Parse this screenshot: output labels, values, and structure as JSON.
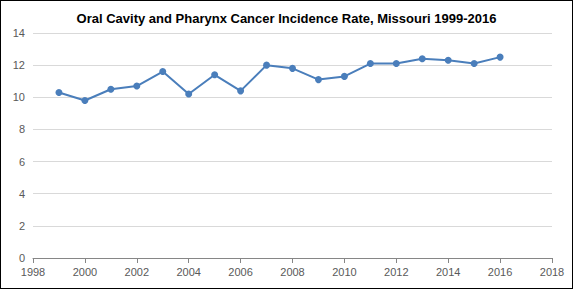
{
  "chart_data": {
    "type": "line",
    "title": "Oral Cavity and Pharynx Cancer Incidence Rate, Missouri 1999-2016",
    "x": [
      1999,
      2000,
      2001,
      2002,
      2003,
      2004,
      2005,
      2006,
      2007,
      2008,
      2009,
      2010,
      2011,
      2012,
      2013,
      2014,
      2015,
      2016
    ],
    "values": [
      10.3,
      9.8,
      10.5,
      10.7,
      11.6,
      10.2,
      11.4,
      10.4,
      12.0,
      11.8,
      11.1,
      11.3,
      12.1,
      12.1,
      12.4,
      12.3,
      12.1,
      12.5
    ],
    "color": "#4a7ebb",
    "marker": "circle",
    "line_style": "solid",
    "xlim": [
      1998,
      2018
    ],
    "xticks": [
      1998,
      2000,
      2002,
      2004,
      2006,
      2008,
      2010,
      2012,
      2014,
      2016,
      2018
    ],
    "ylim": [
      0,
      14
    ],
    "yticks": [
      0,
      2,
      4,
      6,
      8,
      10,
      12,
      14
    ],
    "grid": true
  }
}
